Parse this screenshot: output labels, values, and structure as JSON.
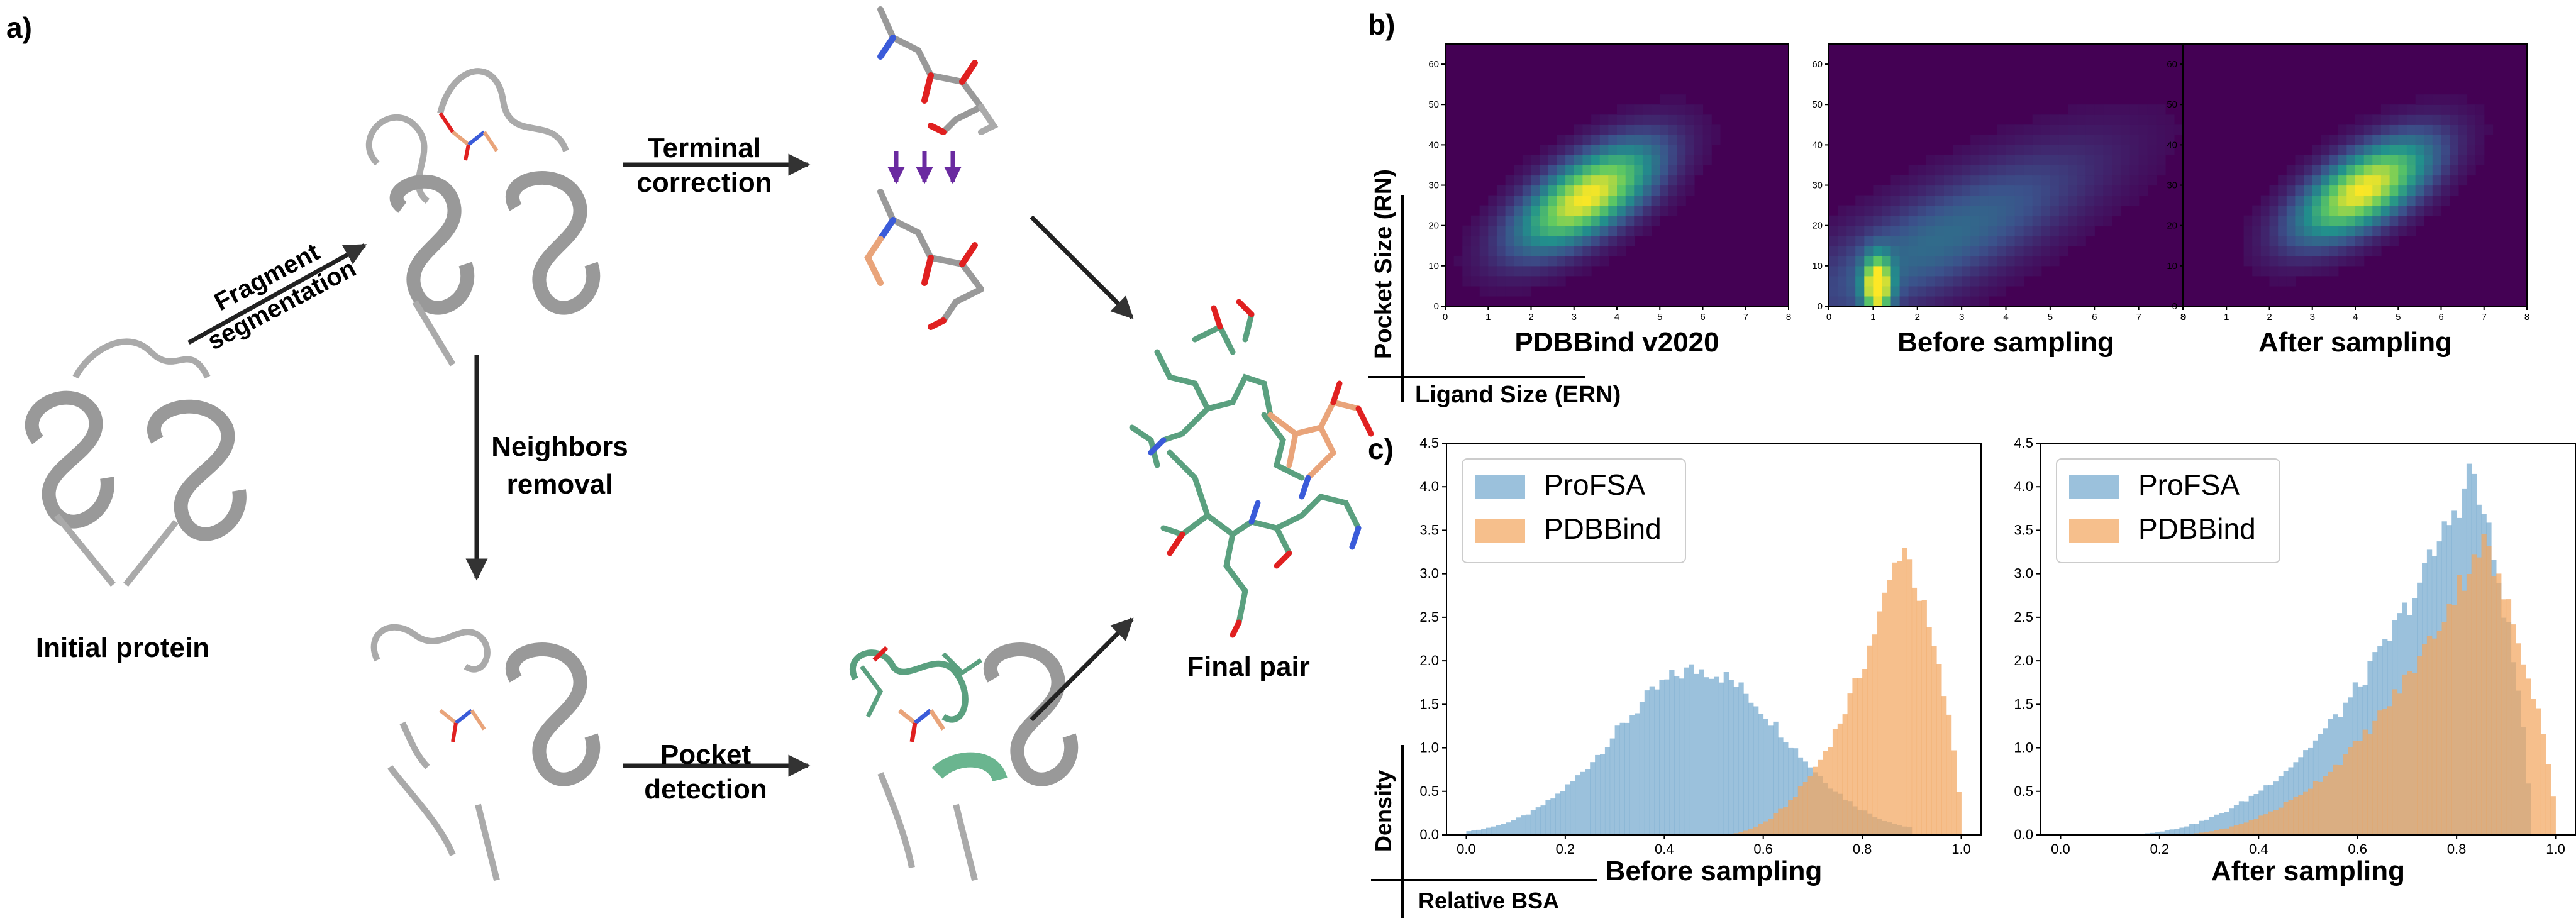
{
  "panel_a": {
    "panel_label": "a)",
    "initial_label": "Initial protein",
    "fragment_line1": "Fragment",
    "fragment_line2": "segmentation",
    "terminal_line1": "Terminal",
    "terminal_line2": "correction",
    "neighbors_line1": "Neighbors",
    "neighbors_line2": "removal",
    "pocket_line1": "Pocket",
    "pocket_line2": "detection",
    "final_label": "Final pair",
    "colors": {
      "protein": "#c8c8c8",
      "protein_edge": "#555555",
      "pocket": "#6ab58f",
      "ligand": "#e9a47a",
      "oxygen": "#e02020",
      "nitrogen": "#3a5bd9",
      "arrow_purple": "#6a2aa0"
    }
  },
  "panel_b": {
    "panel_label": "b)",
    "ylabel": "Pocket Size (RN)",
    "xlabel": "Ligand Size (ERN)",
    "x_ticks": [
      "0",
      "1",
      "2",
      "3",
      "4",
      "5",
      "6",
      "7",
      "8"
    ],
    "y_ticks": [
      "0",
      "10",
      "20",
      "30",
      "40",
      "50",
      "60"
    ]
  },
  "panel_c": {
    "panel_label": "c)",
    "ylabel": "Density",
    "xlabel": "Relative BSA",
    "x_ticks": [
      "0.0",
      "0.2",
      "0.4",
      "0.6",
      "0.8",
      "1.0"
    ],
    "y_ticks": [
      "0.0",
      "0.5",
      "1.0",
      "1.5",
      "2.0",
      "2.5",
      "3.0",
      "3.5",
      "4.0",
      "4.5"
    ],
    "colors": {
      "profsa": "#74a9cf",
      "pdbbind": "#f3a65f"
    }
  },
  "chart_data": [
    {
      "type": "heatmap",
      "title": "PDBBind v2020",
      "xlim": [
        0,
        8
      ],
      "ylim": [
        0,
        65
      ],
      "peak": {
        "x": 3.2,
        "y": 27
      },
      "colormap": "viridis"
    },
    {
      "type": "heatmap",
      "title": "Before sampling",
      "xlim": [
        0,
        8
      ],
      "ylim": [
        0,
        65
      ],
      "peak": {
        "x": 1.1,
        "y": 4
      },
      "colormap": "viridis"
    },
    {
      "type": "heatmap",
      "title": "After sampling",
      "xlim": [
        0,
        8
      ],
      "ylim": [
        0,
        65
      ],
      "peak": {
        "x": 4.2,
        "y": 28
      },
      "colormap": "viridis"
    },
    {
      "type": "bar",
      "title": "Before sampling",
      "xlim": [
        0,
        1
      ],
      "ylim": [
        0,
        4.5
      ],
      "legend_position": "upper-left",
      "series": [
        {
          "name": "ProFSA",
          "shape": "normal",
          "mean": 0.47,
          "sd": 0.17,
          "range": [
            0,
            0.9
          ]
        },
        {
          "name": "PDBBind",
          "shape": "left-skewed",
          "mode": 0.88,
          "peak": 3.4,
          "range": [
            0.5,
            1.0
          ]
        }
      ]
    },
    {
      "type": "bar",
      "title": "After sampling",
      "xlim": [
        0,
        1
      ],
      "ylim": [
        0,
        4.5
      ],
      "legend_position": "upper-left",
      "series": [
        {
          "name": "ProFSA",
          "shape": "left-skewed",
          "mode": 0.83,
          "peak": 4.2,
          "range": [
            0.1,
            0.95
          ]
        },
        {
          "name": "PDBBind",
          "shape": "left-skewed",
          "mode": 0.85,
          "peak": 3.4,
          "range": [
            0.2,
            1.0
          ]
        }
      ]
    }
  ]
}
